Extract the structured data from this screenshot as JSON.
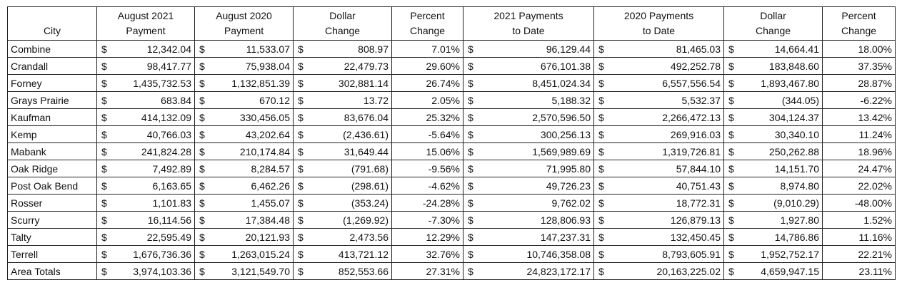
{
  "headers": [
    {
      "line1": "",
      "line2": "City"
    },
    {
      "line1": "August 2021",
      "line2": "Payment"
    },
    {
      "line1": "August 2020",
      "line2": "Payment"
    },
    {
      "line1": "Dollar",
      "line2": "Change"
    },
    {
      "line1": "Percent",
      "line2": "Change"
    },
    {
      "line1": "2021 Payments",
      "line2": "to Date"
    },
    {
      "line1": "2020 Payments",
      "line2": "to Date"
    },
    {
      "line1": "Dollar",
      "line2": "Change"
    },
    {
      "line1": "Percent",
      "line2": "Change"
    }
  ],
  "currency_symbol": "$",
  "rows": [
    {
      "city": "Combine",
      "aug2021": "12,342.04",
      "aug2020": "11,533.07",
      "dollar_change": "808.97",
      "pct_change": "7.01%",
      "ytd2021": "96,129.44",
      "ytd2020": "81,465.03",
      "ytd_dollar_change": "14,664.41",
      "ytd_pct_change": "18.00%"
    },
    {
      "city": "Crandall",
      "aug2021": "98,417.77",
      "aug2020": "75,938.04",
      "dollar_change": "22,479.73",
      "pct_change": "29.60%",
      "ytd2021": "676,101.38",
      "ytd2020": "492,252.78",
      "ytd_dollar_change": "183,848.60",
      "ytd_pct_change": "37.35%"
    },
    {
      "city": "Forney",
      "aug2021": "1,435,732.53",
      "aug2020": "1,132,851.39",
      "dollar_change": "302,881.14",
      "pct_change": "26.74%",
      "ytd2021": "8,451,024.34",
      "ytd2020": "6,557,556.54",
      "ytd_dollar_change": "1,893,467.80",
      "ytd_pct_change": "28.87%"
    },
    {
      "city": "Grays Prairie",
      "aug2021": "683.84",
      "aug2020": "670.12",
      "dollar_change": "13.72",
      "pct_change": "2.05%",
      "ytd2021": "5,188.32",
      "ytd2020": "5,532.37",
      "ytd_dollar_change": "(344.05)",
      "ytd_pct_change": "-6.22%"
    },
    {
      "city": "Kaufman",
      "aug2021": "414,132.09",
      "aug2020": "330,456.05",
      "dollar_change": "83,676.04",
      "pct_change": "25.32%",
      "ytd2021": "2,570,596.50",
      "ytd2020": "2,266,472.13",
      "ytd_dollar_change": "304,124.37",
      "ytd_pct_change": "13.42%"
    },
    {
      "city": "Kemp",
      "aug2021": "40,766.03",
      "aug2020": "43,202.64",
      "dollar_change": "(2,436.61)",
      "pct_change": "-5.64%",
      "ytd2021": "300,256.13",
      "ytd2020": "269,916.03",
      "ytd_dollar_change": "30,340.10",
      "ytd_pct_change": "11.24%"
    },
    {
      "city": "Mabank",
      "aug2021": "241,824.28",
      "aug2020": "210,174.84",
      "dollar_change": "31,649.44",
      "pct_change": "15.06%",
      "ytd2021": "1,569,989.69",
      "ytd2020": "1,319,726.81",
      "ytd_dollar_change": "250,262.88",
      "ytd_pct_change": "18.96%"
    },
    {
      "city": "Oak Ridge",
      "aug2021": "7,492.89",
      "aug2020": "8,284.57",
      "dollar_change": "(791.68)",
      "pct_change": "-9.56%",
      "ytd2021": "71,995.80",
      "ytd2020": "57,844.10",
      "ytd_dollar_change": "14,151.70",
      "ytd_pct_change": "24.47%"
    },
    {
      "city": "Post Oak Bend",
      "aug2021": "6,163.65",
      "aug2020": "6,462.26",
      "dollar_change": "(298.61)",
      "pct_change": "-4.62%",
      "ytd2021": "49,726.23",
      "ytd2020": "40,751.43",
      "ytd_dollar_change": "8,974.80",
      "ytd_pct_change": "22.02%"
    },
    {
      "city": "Rosser",
      "aug2021": "1,101.83",
      "aug2020": "1,455.07",
      "dollar_change": "(353.24)",
      "pct_change": "-24.28%",
      "ytd2021": "9,762.02",
      "ytd2020": "18,772.31",
      "ytd_dollar_change": "(9,010.29)",
      "ytd_pct_change": "-48.00%"
    },
    {
      "city": "Scurry",
      "aug2021": "16,114.56",
      "aug2020": "17,384.48",
      "dollar_change": "(1,269.92)",
      "pct_change": "-7.30%",
      "ytd2021": "128,806.93",
      "ytd2020": "126,879.13",
      "ytd_dollar_change": "1,927.80",
      "ytd_pct_change": "1.52%"
    },
    {
      "city": "Talty",
      "aug2021": "22,595.49",
      "aug2020": "20,121.93",
      "dollar_change": "2,473.56",
      "pct_change": "12.29%",
      "ytd2021": "147,237.31",
      "ytd2020": "132,450.45",
      "ytd_dollar_change": "14,786.86",
      "ytd_pct_change": "11.16%"
    },
    {
      "city": "Terrell",
      "aug2021": "1,676,736.36",
      "aug2020": "1,263,015.24",
      "dollar_change": "413,721.12",
      "pct_change": "32.76%",
      "ytd2021": "10,746,358.08",
      "ytd2020": "8,793,605.91",
      "ytd_dollar_change": "1,952,752.17",
      "ytd_pct_change": "22.21%"
    },
    {
      "city": "Area Totals",
      "aug2021": "3,974,103.36",
      "aug2020": "3,121,549.70",
      "dollar_change": "852,553.66",
      "pct_change": "27.31%",
      "ytd2021": "24,823,172.17",
      "ytd2020": "20,163,225.02",
      "ytd_dollar_change": "4,659,947.15",
      "ytd_pct_change": "23.11%"
    }
  ]
}
